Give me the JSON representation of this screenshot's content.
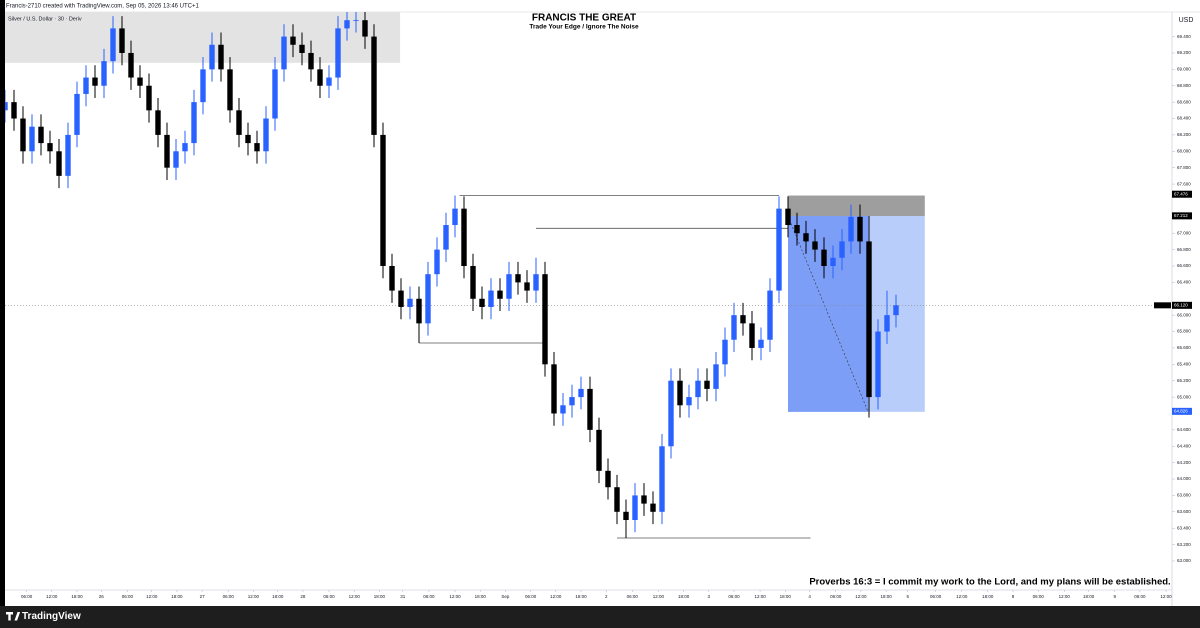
{
  "chart_data": {
    "type": "candlestick",
    "header_text": "Francis-2710 created with TradingView.com, Sep 05, 2026 13:46 UTC+1",
    "legend_text": "Silver / U.S. Dollar · 30 · Deriv",
    "title": "FRANCIS THE GREAT",
    "subtitle": "Trade Your Edge / Ignore The Noise",
    "currency": "USD",
    "annotation": "Proverbs 16:3 = I commit my work to the Lord, and my plans will be established.",
    "brand": "TradingView",
    "up_color": "#2962ff",
    "down_color": "#000000",
    "x": [
      0,
      1,
      2,
      3,
      4,
      5,
      6,
      7,
      8,
      9,
      10,
      11,
      12,
      13,
      14,
      15,
      16,
      17,
      18,
      19,
      20,
      21,
      22,
      23,
      24,
      25,
      26,
      27,
      28,
      29,
      30,
      31,
      32,
      33,
      34,
      35,
      36,
      37,
      38,
      39,
      40,
      41,
      42,
      43,
      44,
      45,
      46,
      47,
      48,
      49,
      50,
      51,
      52,
      53,
      54,
      55,
      56,
      57,
      58,
      59,
      60,
      61,
      62,
      63,
      64,
      65,
      66,
      67,
      68,
      69,
      70,
      71,
      72,
      73,
      74,
      75,
      76,
      77,
      78,
      79,
      80,
      81,
      82,
      83,
      84,
      85,
      86,
      87,
      88,
      89,
      90,
      91,
      92,
      93,
      94,
      95,
      96,
      97,
      98,
      99
    ],
    "open": [
      68.5,
      68.6,
      68.4,
      68.0,
      68.3,
      68.1,
      68.0,
      67.7,
      68.2,
      68.7,
      68.9,
      68.8,
      69.1,
      69.5,
      69.2,
      68.9,
      68.8,
      68.5,
      68.2,
      67.8,
      68.0,
      68.1,
      68.6,
      69.0,
      69.3,
      69.0,
      68.5,
      68.2,
      68.1,
      68.0,
      68.4,
      69.0,
      69.4,
      69.3,
      69.2,
      69.0,
      68.8,
      68.9,
      69.5,
      69.6,
      69.6,
      69.4,
      68.2,
      66.6,
      66.3,
      66.1,
      66.2,
      65.9,
      66.5,
      66.8,
      67.1,
      67.3,
      66.6,
      66.2,
      66.1,
      66.3,
      66.2,
      66.5,
      66.4,
      66.3,
      66.5,
      65.4,
      64.8,
      64.9,
      65.0,
      65.1,
      64.6,
      64.1,
      63.9,
      63.6,
      63.5,
      63.8,
      63.7,
      63.6,
      64.4,
      65.2,
      64.9,
      65.0,
      65.2,
      65.1,
      65.4,
      65.7,
      66.0,
      65.9,
      65.6,
      65.7,
      66.3,
      67.3,
      67.1,
      67.0,
      66.9,
      66.8,
      66.6,
      66.7,
      66.9,
      67.2,
      66.9,
      65.0,
      65.8,
      66.0
    ],
    "high": [
      68.75,
      68.75,
      68.55,
      68.45,
      68.45,
      68.25,
      68.15,
      68.35,
      68.85,
      69.05,
      69.05,
      69.25,
      69.65,
      69.65,
      69.35,
      69.05,
      68.95,
      68.65,
      68.35,
      68.15,
      68.25,
      68.75,
      69.15,
      69.45,
      69.45,
      69.15,
      68.65,
      68.35,
      68.25,
      68.55,
      69.15,
      69.55,
      69.55,
      69.45,
      69.35,
      69.15,
      69.05,
      69.65,
      69.9,
      69.9,
      69.75,
      69.55,
      68.35,
      66.75,
      66.45,
      66.35,
      66.35,
      66.65,
      66.95,
      67.25,
      67.46,
      67.45,
      66.75,
      66.35,
      66.45,
      66.45,
      66.65,
      66.65,
      66.55,
      66.7,
      66.65,
      65.55,
      65.05,
      65.15,
      65.25,
      65.25,
      64.75,
      64.25,
      64.05,
      63.75,
      63.95,
      63.95,
      63.85,
      64.55,
      65.35,
      65.35,
      65.15,
      65.35,
      65.35,
      65.55,
      65.85,
      66.15,
      66.15,
      66.05,
      65.85,
      66.45,
      67.45,
      67.45,
      67.25,
      67.15,
      67.05,
      66.95,
      66.85,
      67.05,
      67.35,
      67.35,
      67.21,
      65.95,
      66.3,
      66.25
    ],
    "low": [
      68.35,
      68.25,
      67.85,
      67.85,
      67.95,
      67.85,
      67.55,
      67.55,
      68.05,
      68.55,
      68.65,
      68.65,
      68.95,
      69.05,
      68.75,
      68.65,
      68.35,
      68.05,
      67.65,
      67.65,
      67.85,
      67.95,
      68.45,
      68.85,
      68.85,
      68.35,
      68.05,
      67.95,
      67.85,
      67.85,
      68.25,
      68.85,
      69.15,
      69.05,
      68.85,
      68.65,
      68.65,
      68.75,
      69.35,
      69.45,
      69.25,
      68.05,
      66.45,
      66.15,
      65.95,
      65.95,
      65.66,
      65.75,
      66.35,
      66.65,
      66.95,
      66.45,
      66.05,
      65.95,
      65.95,
      66.05,
      66.05,
      66.25,
      66.15,
      66.15,
      65.25,
      64.65,
      64.65,
      64.75,
      64.85,
      64.45,
      63.95,
      63.75,
      63.45,
      63.28,
      63.35,
      63.55,
      63.45,
      63.45,
      64.25,
      64.75,
      64.75,
      64.85,
      64.95,
      64.95,
      65.25,
      65.55,
      65.75,
      65.45,
      65.45,
      65.55,
      66.15,
      66.95,
      66.85,
      66.75,
      66.65,
      66.45,
      66.45,
      66.55,
      66.75,
      66.75,
      64.75,
      64.85,
      65.65,
      65.85
    ],
    "close": [
      68.6,
      68.4,
      68.0,
      68.3,
      68.1,
      68.0,
      67.7,
      68.2,
      68.7,
      68.9,
      68.8,
      69.1,
      69.5,
      69.2,
      68.9,
      68.8,
      68.5,
      68.2,
      67.8,
      68.0,
      68.1,
      68.6,
      69.0,
      69.3,
      69.0,
      68.5,
      68.2,
      68.1,
      68.0,
      68.4,
      69.0,
      69.4,
      69.3,
      69.2,
      69.0,
      68.8,
      68.9,
      69.5,
      69.6,
      69.6,
      69.4,
      68.2,
      66.6,
      66.3,
      66.1,
      66.2,
      65.9,
      66.5,
      66.8,
      67.1,
      67.3,
      66.6,
      66.2,
      66.1,
      66.3,
      66.2,
      66.5,
      66.4,
      66.3,
      66.5,
      65.4,
      64.8,
      64.9,
      65.0,
      65.1,
      64.6,
      64.1,
      63.9,
      63.6,
      63.5,
      63.8,
      63.7,
      63.6,
      64.4,
      65.2,
      64.9,
      65.0,
      65.2,
      65.1,
      65.4,
      65.7,
      66.0,
      65.9,
      65.6,
      65.7,
      66.3,
      67.3,
      67.1,
      67.0,
      66.9,
      66.8,
      66.6,
      66.7,
      66.9,
      67.2,
      66.9,
      65.0,
      65.8,
      66.0,
      66.12
    ],
    "xlim": [
      0,
      129
    ],
    "ylim": [
      62.67,
      69.7
    ],
    "xticks": [
      {
        "value": 2.4,
        "label": "06:00"
      },
      {
        "value": 5.2,
        "label": "12:00"
      },
      {
        "value": 8,
        "label": "18:00"
      },
      {
        "value": 10.7,
        "label": "26"
      },
      {
        "value": 13.6,
        "label": "06:00"
      },
      {
        "value": 16.3,
        "label": "12:00"
      },
      {
        "value": 19.1,
        "label": "18:00"
      },
      {
        "value": 21.9,
        "label": "27"
      },
      {
        "value": 24.8,
        "label": "06:00"
      },
      {
        "value": 27.6,
        "label": "12:00"
      },
      {
        "value": 30.3,
        "label": "18:00"
      },
      {
        "value": 33.1,
        "label": "28"
      },
      {
        "value": 36,
        "label": "06:00"
      },
      {
        "value": 38.8,
        "label": "12:00"
      },
      {
        "value": 41.6,
        "label": "18:00"
      },
      {
        "value": 44.2,
        "label": "31"
      },
      {
        "value": 47.1,
        "label": "06:00"
      },
      {
        "value": 50,
        "label": "12:00"
      },
      {
        "value": 52.8,
        "label": "18:00"
      },
      {
        "value": 55.6,
        "label": "Sep"
      },
      {
        "value": 58.4,
        "label": "06:00"
      },
      {
        "value": 61.2,
        "label": "12:00"
      },
      {
        "value": 64,
        "label": "18:00"
      },
      {
        "value": 66.8,
        "label": "2"
      },
      {
        "value": 69.7,
        "label": "06:00"
      },
      {
        "value": 72.6,
        "label": "12:00"
      },
      {
        "value": 75.4,
        "label": "18:00"
      },
      {
        "value": 78.2,
        "label": "3"
      },
      {
        "value": 81,
        "label": "06:00"
      },
      {
        "value": 83.9,
        "label": "12:00"
      },
      {
        "value": 86.7,
        "label": "18:00"
      },
      {
        "value": 89.4,
        "label": "4"
      },
      {
        "value": 92.3,
        "label": "06:00"
      },
      {
        "value": 95.1,
        "label": "12:00"
      },
      {
        "value": 97.9,
        "label": "18:00"
      },
      {
        "value": 100.3,
        "label": "5"
      },
      {
        "value": 103.4,
        "label": "06:00"
      },
      {
        "value": 106.3,
        "label": "12:00"
      },
      {
        "value": 109.2,
        "label": "18:00"
      },
      {
        "value": 112,
        "label": "8"
      },
      {
        "value": 114.8,
        "label": "06:00"
      },
      {
        "value": 117.7,
        "label": "12:00"
      },
      {
        "value": 120.4,
        "label": "18:00"
      },
      {
        "value": 123.3,
        "label": "9"
      },
      {
        "value": 126.1,
        "label": "06:00"
      },
      {
        "value": 129,
        "label": "12:00"
      }
    ],
    "yticks": [
      {
        "value": 63.0,
        "label": "63.000"
      },
      {
        "value": 63.2,
        "label": "63.200"
      },
      {
        "value": 63.4,
        "label": "63.400"
      },
      {
        "value": 63.6,
        "label": "63.600"
      },
      {
        "value": 63.8,
        "label": "63.800"
      },
      {
        "value": 64.0,
        "label": "64.000"
      },
      {
        "value": 64.2,
        "label": "64.200"
      },
      {
        "value": 64.4,
        "label": "64.400"
      },
      {
        "value": 64.6,
        "label": "64.600"
      },
      {
        "value": 65.0,
        "label": "65.000"
      },
      {
        "value": 65.2,
        "label": "65.200"
      },
      {
        "value": 65.4,
        "label": "65.400"
      },
      {
        "value": 65.6,
        "label": "65.600"
      },
      {
        "value": 65.8,
        "label": "65.800"
      },
      {
        "value": 66.0,
        "label": "66.000"
      },
      {
        "value": 66.4,
        "label": "66.400"
      },
      {
        "value": 66.6,
        "label": "66.600"
      },
      {
        "value": 66.8,
        "label": "66.800"
      },
      {
        "value": 67.0,
        "label": "67.000"
      },
      {
        "value": 67.6,
        "label": "67.600"
      },
      {
        "value": 67.8,
        "label": "67.800"
      },
      {
        "value": 68.0,
        "label": "68.000"
      },
      {
        "value": 68.2,
        "label": "68.200"
      },
      {
        "value": 68.4,
        "label": "68.400"
      },
      {
        "value": 68.6,
        "label": "68.600"
      },
      {
        "value": 68.8,
        "label": "68.800"
      },
      {
        "value": 69.0,
        "label": "69.000"
      },
      {
        "value": 69.2,
        "label": "69.200"
      },
      {
        "value": 69.4,
        "label": "69.400"
      }
    ],
    "price_labels": [
      {
        "value": 67.476,
        "label": "67.476",
        "color": "#000000"
      },
      {
        "value": 67.212,
        "label": "67.212",
        "color": "#000000"
      },
      {
        "value": 66.12,
        "label": "66.120",
        "color": "#000000"
      },
      {
        "value": 64.826,
        "label": "64.826",
        "color": "#2962ff"
      }
    ],
    "last_price": 66.12,
    "zones": [
      {
        "low": 69.08,
        "high": 69.7,
        "x": [
          0,
          43.9
        ],
        "color": "#e3e3e3"
      },
      {
        "low": 67.21,
        "high": 67.46,
        "x": [
          87,
          102.2
        ],
        "color": "#9e9e9e"
      },
      {
        "low": 64.82,
        "high": 67.21,
        "x": [
          87,
          102.2
        ],
        "color": "#b9cdfb"
      },
      {
        "low": 64.82,
        "high": 67.21,
        "x": [
          87,
          95.9
        ],
        "color": "#7d9ef7"
      }
    ],
    "levels": [
      {
        "price": 67.46,
        "x": [
          50.5,
          86
        ]
      },
      {
        "price": 67.06,
        "x": [
          59,
          87
        ]
      },
      {
        "price": 65.66,
        "x": [
          46,
          60
        ]
      },
      {
        "price": 63.28,
        "x": [
          68,
          89.5
        ]
      }
    ]
  }
}
